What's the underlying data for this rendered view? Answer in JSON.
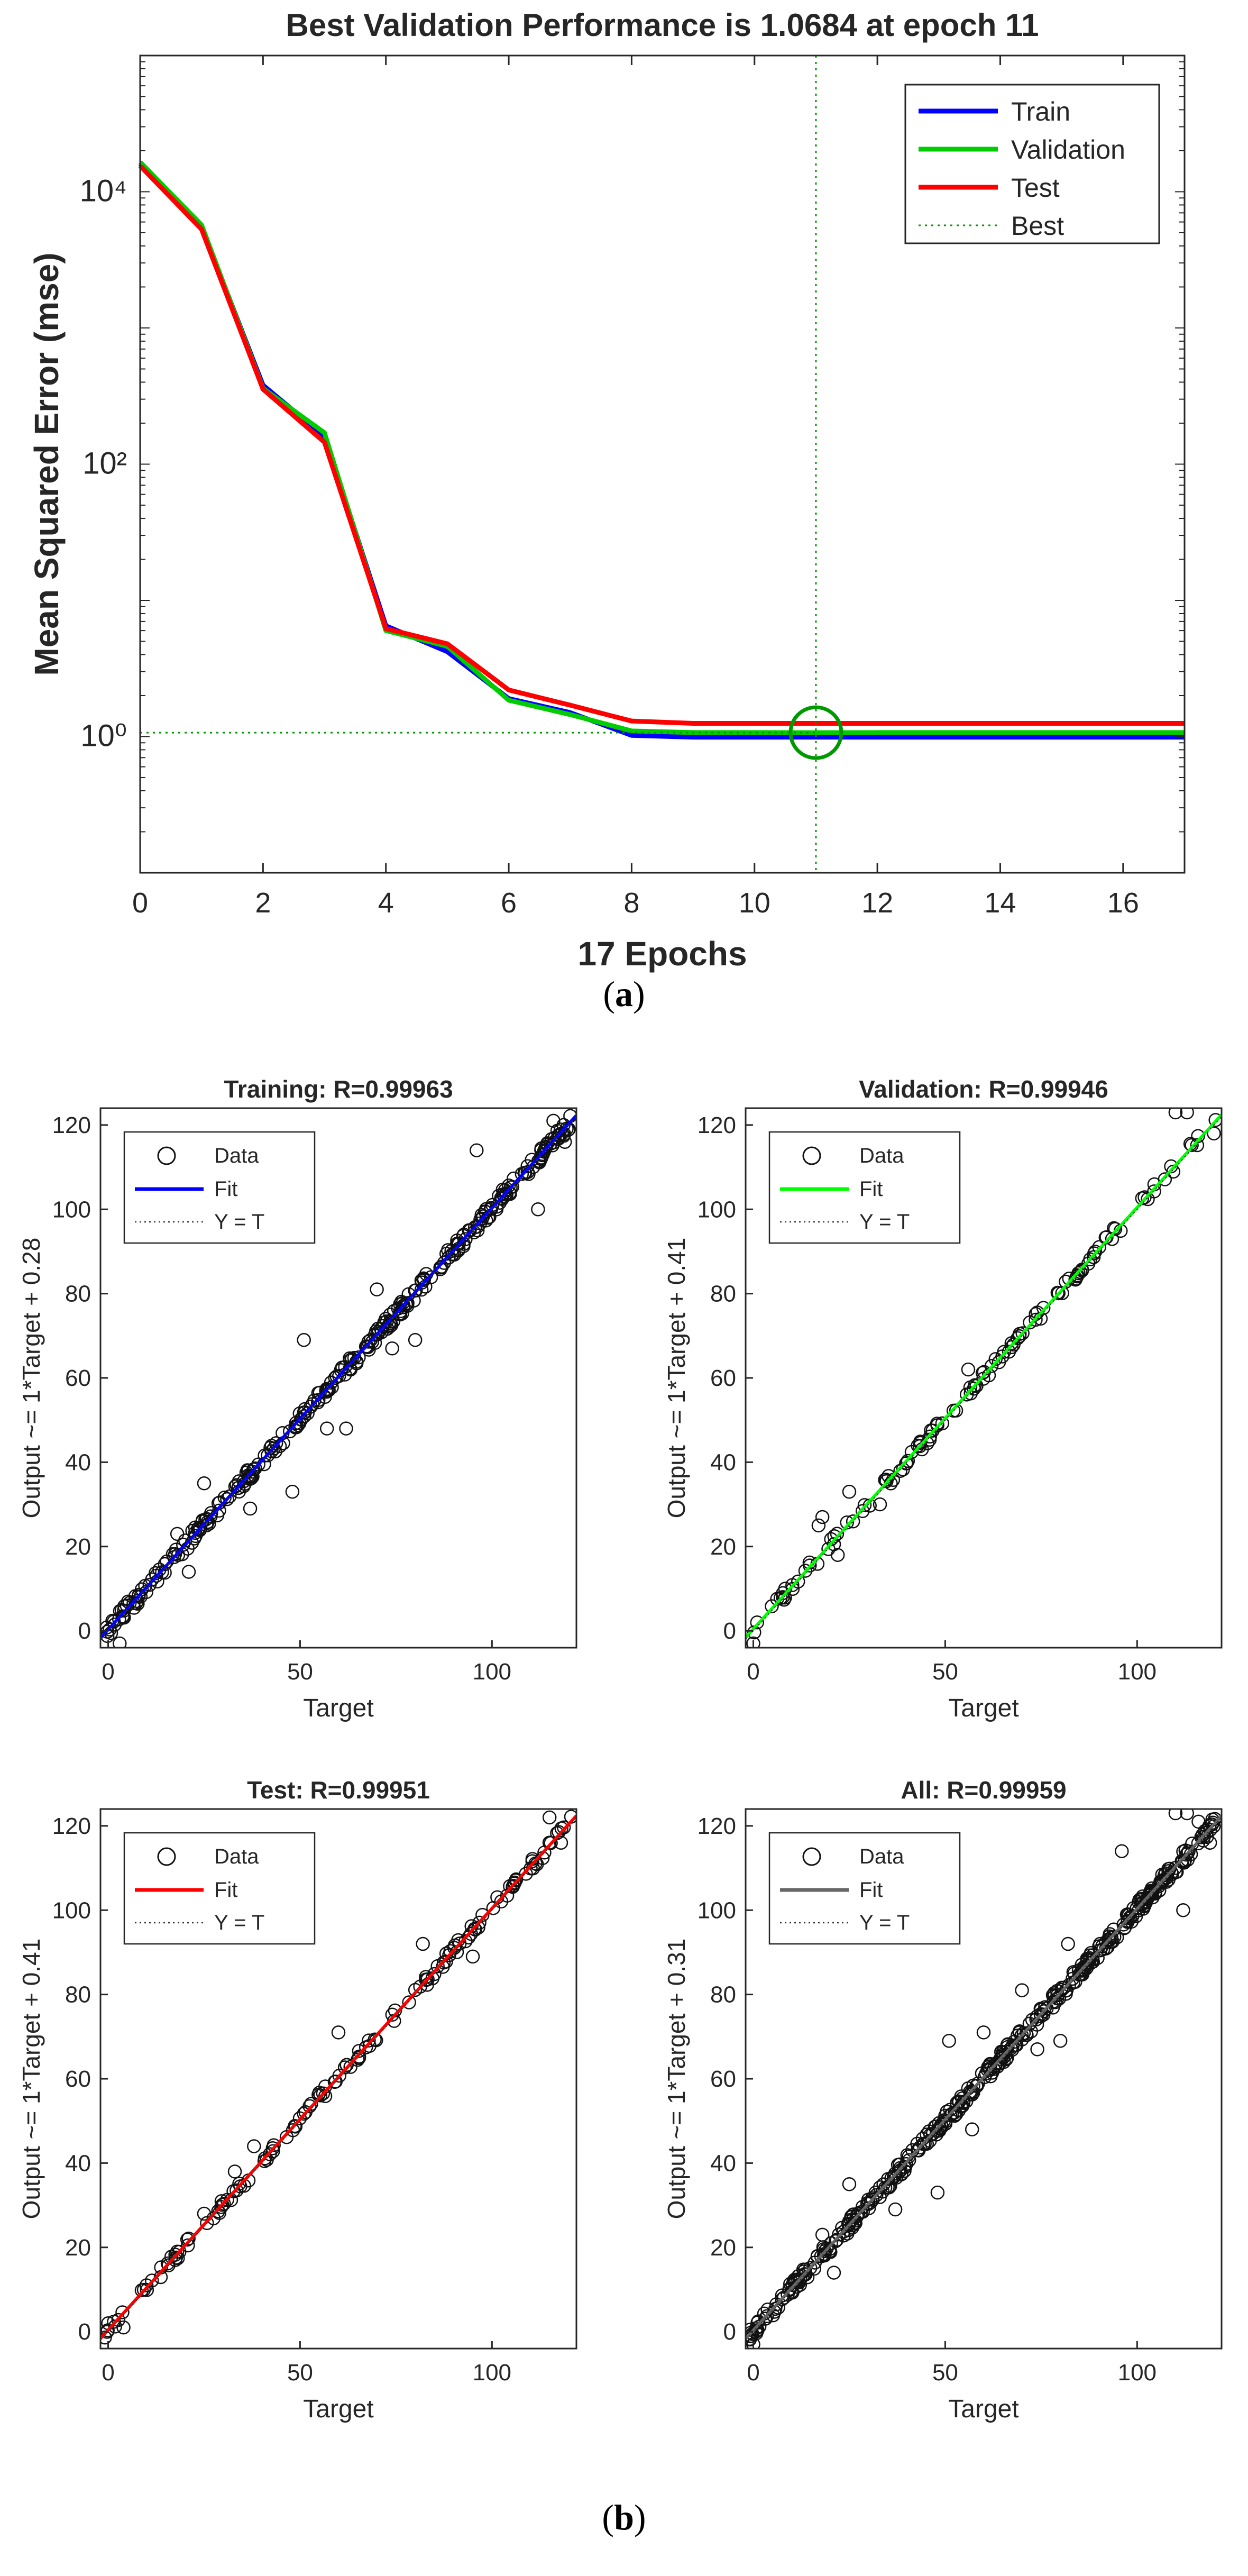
{
  "figure_a": {
    "caption_letter": "a",
    "chart_data": {
      "type": "line",
      "title": "Best Validation Performance is 1.0684 at epoch 11",
      "xlabel": "17 Epochs",
      "ylabel": "Mean Squared Error  (mse)",
      "yscale": "log",
      "xlim": [
        0,
        17
      ],
      "ylim": [
        0.1,
        100000
      ],
      "xticks": [
        0,
        2,
        4,
        6,
        8,
        10,
        12,
        14,
        16
      ],
      "yticks": [
        {
          "value": 1,
          "label": "10⁰"
        },
        {
          "value": 100,
          "label": "10²"
        },
        {
          "value": 10000,
          "label": "10⁴"
        }
      ],
      "x": [
        0,
        1,
        2,
        3,
        4,
        5,
        6,
        7,
        8,
        9,
        10,
        11,
        12,
        13,
        14,
        15,
        16,
        17
      ],
      "series": [
        {
          "name": "Train",
          "color": "#0000ff",
          "values": [
            16000,
            5500,
            380,
            160,
            6.5,
            4.2,
            1.9,
            1.5,
            1.02,
            0.99,
            0.99,
            0.99,
            0.99,
            0.99,
            0.99,
            0.99,
            0.99,
            0.99
          ]
        },
        {
          "name": "Validation",
          "color": "#00cc00",
          "values": [
            16500,
            5700,
            360,
            170,
            6.0,
            4.6,
            1.85,
            1.45,
            1.1,
            1.07,
            1.07,
            1.0684,
            1.07,
            1.07,
            1.07,
            1.07,
            1.07,
            1.07
          ]
        },
        {
          "name": "Test",
          "color": "#ff0000",
          "values": [
            15500,
            5300,
            355,
            145,
            6.2,
            4.8,
            2.2,
            1.7,
            1.3,
            1.25,
            1.25,
            1.25,
            1.25,
            1.25,
            1.25,
            1.25,
            1.25,
            1.25
          ]
        }
      ],
      "best": {
        "name": "Best",
        "epoch": 11,
        "value": 1.0684,
        "color": "#009900"
      },
      "legend": [
        "Train",
        "Validation",
        "Test",
        "Best"
      ],
      "legend_position": "top-right"
    }
  },
  "figure_b": {
    "caption_letter": "b",
    "chart_data": [
      {
        "type": "scatter",
        "title": "Training: R=0.99963",
        "xlabel": "Target",
        "ylabel": "Output ~= 1*Target + 0.28",
        "xlim": [
          -2,
          122
        ],
        "ylim": [
          -4,
          124
        ],
        "xticks": [
          0,
          50,
          100
        ],
        "yticks": [
          0,
          20,
          40,
          60,
          80,
          100,
          120
        ],
        "fit": {
          "slope": 1,
          "intercept": 0.28,
          "color": "#0000ff"
        },
        "legend": [
          "Data",
          "Fit",
          "Y = T"
        ],
        "outliers": [
          [
            3,
            -3
          ],
          [
            18,
            23
          ],
          [
            21,
            14
          ],
          [
            25,
            35
          ],
          [
            37,
            29
          ],
          [
            48,
            33
          ],
          [
            51,
            69
          ],
          [
            57,
            48
          ],
          [
            62,
            48
          ],
          [
            70,
            81
          ],
          [
            74,
            67
          ],
          [
            80,
            69
          ],
          [
            96,
            114
          ],
          [
            112,
            100
          ],
          [
            116,
            121
          ],
          [
            119,
            116
          ]
        ],
        "n_points": 320,
        "noise": 1.6,
        "seed": 11
      },
      {
        "type": "scatter",
        "title": "Validation: R=0.99946",
        "xlabel": "Target",
        "ylabel": "Output ~= 1*Target + 0.41",
        "xlim": [
          -2,
          122
        ],
        "ylim": [
          -4,
          124
        ],
        "xticks": [
          0,
          50,
          100
        ],
        "yticks": [
          0,
          20,
          40,
          60,
          80,
          100,
          120
        ],
        "fit": {
          "slope": 1,
          "intercept": 0.41,
          "color": "#00ff00"
        },
        "legend": [
          "Data",
          "Fit",
          "Y = T"
        ],
        "outliers": [
          [
            0,
            -3
          ],
          [
            1,
            2
          ],
          [
            17,
            25
          ],
          [
            18,
            27
          ],
          [
            22,
            18
          ],
          [
            25,
            33
          ],
          [
            33,
            30
          ],
          [
            56,
            62
          ],
          [
            110,
            123
          ],
          [
            113,
            123
          ],
          [
            120,
            118
          ]
        ],
        "n_points": 120,
        "noise": 1.3,
        "seed": 23
      },
      {
        "type": "scatter",
        "title": "Test: R=0.99951",
        "xlabel": "Target",
        "ylabel": "Output ~= 1*Target + 0.41",
        "xlim": [
          -2,
          122
        ],
        "ylim": [
          -4,
          124
        ],
        "xticks": [
          0,
          50,
          100
        ],
        "yticks": [
          0,
          20,
          40,
          60,
          80,
          100,
          120
        ],
        "fit": {
          "slope": 1,
          "intercept": 0.41,
          "color": "#ff0000"
        },
        "legend": [
          "Data",
          "Fit",
          "Y = T"
        ],
        "outliers": [
          [
            0,
            2
          ],
          [
            4,
            1
          ],
          [
            10,
            11
          ],
          [
            18,
            19
          ],
          [
            25,
            28
          ],
          [
            33,
            38
          ],
          [
            38,
            44
          ],
          [
            60,
            71
          ],
          [
            82,
            92
          ],
          [
            95,
            89
          ],
          [
            115,
            122
          ],
          [
            118,
            116
          ]
        ],
        "n_points": 140,
        "noise": 1.3,
        "seed": 37
      },
      {
        "type": "scatter",
        "title": "All: R=0.99959",
        "xlabel": "Target",
        "ylabel": "Output ~= 1*Target + 0.31",
        "xlim": [
          -2,
          122
        ],
        "ylim": [
          -4,
          124
        ],
        "xticks": [
          0,
          50,
          100
        ],
        "yticks": [
          0,
          20,
          40,
          60,
          80,
          100,
          120
        ],
        "fit": {
          "slope": 1,
          "intercept": 0.31,
          "color": "#666666"
        },
        "legend": [
          "Data",
          "Fit",
          "Y = T"
        ],
        "outliers": [
          [
            0,
            -3
          ],
          [
            18,
            23
          ],
          [
            21,
            14
          ],
          [
            25,
            35
          ],
          [
            37,
            29
          ],
          [
            48,
            33
          ],
          [
            51,
            69
          ],
          [
            57,
            48
          ],
          [
            60,
            71
          ],
          [
            70,
            81
          ],
          [
            74,
            67
          ],
          [
            80,
            69
          ],
          [
            82,
            92
          ],
          [
            96,
            114
          ],
          [
            110,
            123
          ],
          [
            112,
            100
          ],
          [
            113,
            123
          ],
          [
            116,
            121
          ],
          [
            119,
            116
          ]
        ],
        "n_points": 420,
        "noise": 1.6,
        "seed": 53
      }
    ]
  }
}
